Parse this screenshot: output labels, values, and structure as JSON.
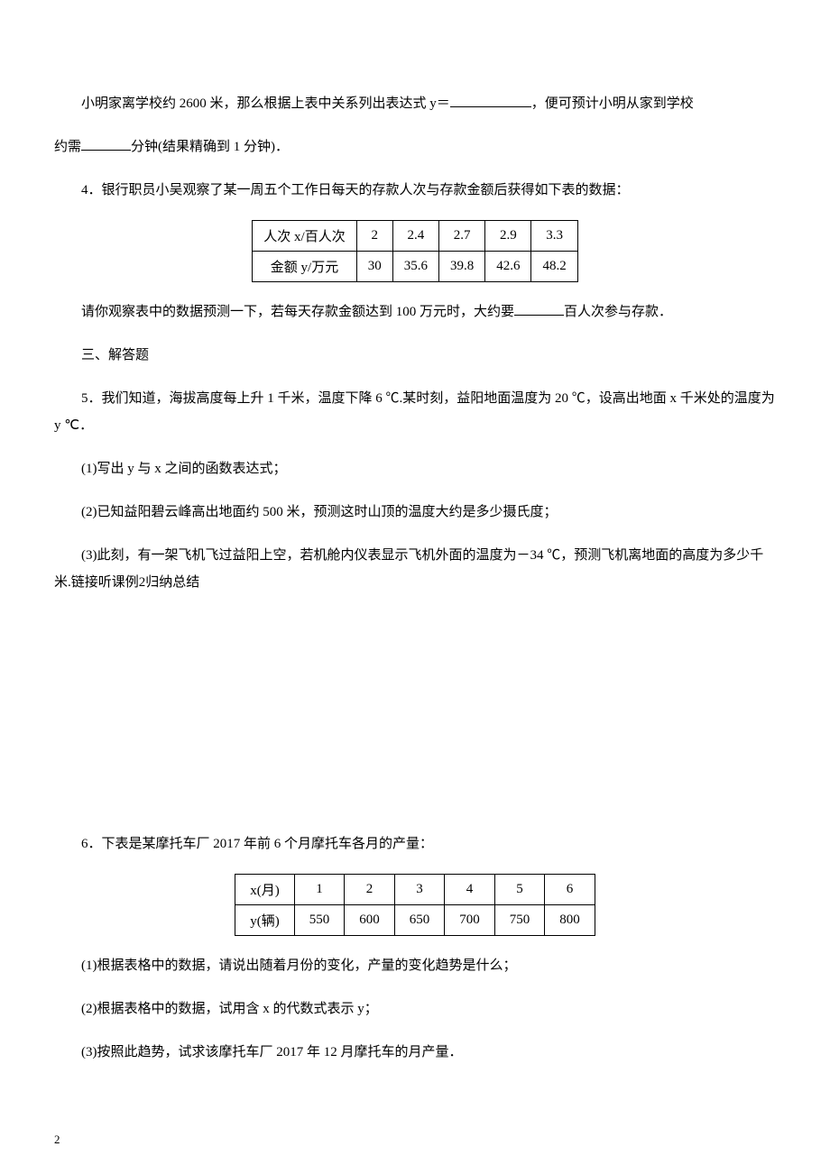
{
  "q3_continuation": {
    "p1_a": "小明家离学校约 2600 米，那么根据上表中关系列出表达式 y＝",
    "p1_b": "，便可预计小明从家到学校",
    "p2_a": "约需",
    "p2_b": "分钟(结果精确到 1 分钟)．"
  },
  "q4": {
    "intro": "4．银行职员小吴观察了某一周五个工作日每天的存款人次与存款金额后获得如下表的数据：",
    "table": {
      "row1_label": "人次 x/百人次",
      "row1": [
        "2",
        "2.4",
        "2.7",
        "2.9",
        "3.3"
      ],
      "row2_label": "金额 y/万元",
      "row2": [
        "30",
        "35.6",
        "39.8",
        "42.6",
        "48.2"
      ]
    },
    "followup_a": "请你观察表中的数据预测一下，若每天存款金额达到 100 万元时，大约要",
    "followup_b": "百人次参与存款．"
  },
  "section3": "三、解答题",
  "q5": {
    "intro": "5．我们知道，海拔高度每上升 1 千米，温度下降 6 ℃.某时刻，益阳地面温度为 20 ℃，设高出地面 x 千米处的温度为 y ℃．",
    "p1": "(1)写出 y 与 x 之间的函数表达式；",
    "p2": "(2)已知益阳碧云峰高出地面约 500 米，预测这时山顶的温度大约是多少摄氏度；",
    "p3": "(3)此刻，有一架飞机飞过益阳上空，若机舱内仪表显示飞机外面的温度为－34 ℃，预测飞机离地面的高度为多少千米.链接听课例2归纳总结"
  },
  "q6": {
    "intro": "6．下表是某摩托车厂 2017 年前 6 个月摩托车各月的产量：",
    "table": {
      "row1_label": "x(月)",
      "row1": [
        "1",
        "2",
        "3",
        "4",
        "5",
        "6"
      ],
      "row2_label": "y(辆)",
      "row2": [
        "550",
        "600",
        "650",
        "700",
        "750",
        "800"
      ]
    },
    "p1": "(1)根据表格中的数据，请说出随着月份的变化，产量的变化趋势是什么；",
    "p2": "(2)根据表格中的数据，试用含 x 的代数式表示 y；",
    "p3": "(3)按照此趋势，试求该摩托车厂 2017 年 12 月摩托车的月产量．"
  },
  "page_number": "2"
}
